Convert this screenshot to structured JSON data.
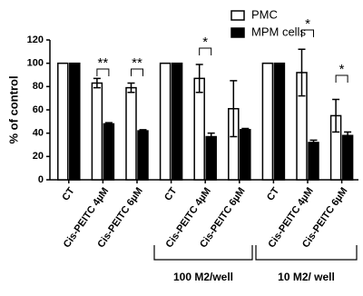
{
  "chart_data": {
    "type": "bar",
    "y_label": "% of control",
    "categories": [
      "CT",
      "Cis-PEITC 4µM",
      "Cis-PEITC 6µM",
      "CT",
      "Cis-PEITC 4µM",
      "Cis-PEITC 6µM",
      "CT",
      "Cis-PEITC 4µM",
      "Cis-PEITC 6µM"
    ],
    "series": [
      {
        "name": "PMC",
        "color": "#ffffff",
        "values": [
          100,
          83,
          79,
          100,
          87,
          61,
          100,
          92,
          55
        ],
        "errors": [
          null,
          4,
          4,
          null,
          12,
          24,
          null,
          20,
          14
        ]
      },
      {
        "name": "MPM cells",
        "color": "#000000",
        "values": [
          100,
          48,
          42,
          100,
          37,
          43,
          100,
          32,
          38
        ],
        "errors": [
          null,
          1,
          1,
          null,
          3,
          1,
          null,
          2,
          3
        ]
      }
    ],
    "ylim": [
      0,
      120
    ],
    "yticks": [
      0,
      20,
      40,
      60,
      80,
      100,
      120
    ],
    "annotations": [
      "**",
      "**",
      "*",
      "*",
      "*"
    ],
    "groups": [
      "100 M2/well",
      "10 M2/ well"
    ],
    "legend": "top-right"
  }
}
